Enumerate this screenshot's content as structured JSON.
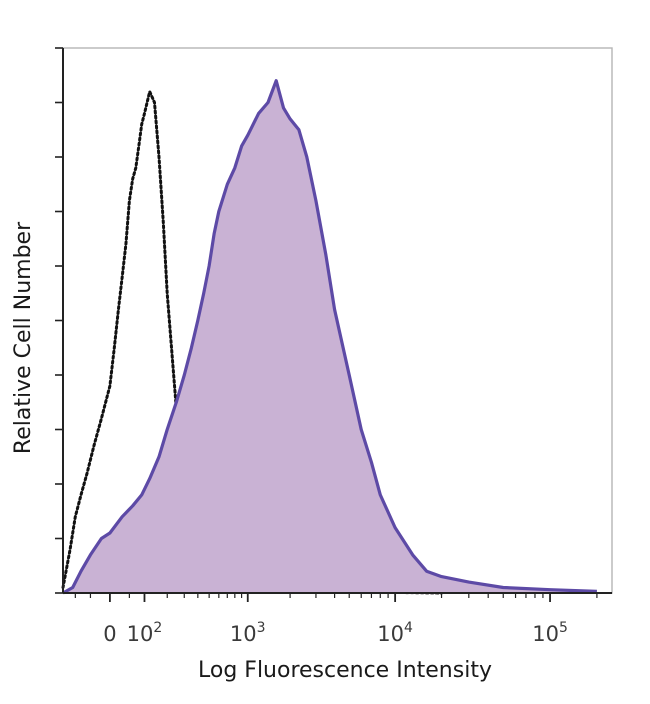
{
  "chart_data": {
    "type": "area",
    "title": "",
    "xlabel": "Log Fluorescence Intensity",
    "ylabel": "Relative Cell Number",
    "x_scale": "biexponential",
    "x_ticks": [
      {
        "value": 0,
        "base": "0",
        "exp": ""
      },
      {
        "value": 100,
        "base": "10",
        "exp": "2"
      },
      {
        "value": 1000,
        "base": "10",
        "exp": "3"
      },
      {
        "value": 10000,
        "base": "10",
        "exp": "4"
      },
      {
        "value": 100000,
        "base": "10",
        "exp": "5"
      }
    ],
    "xlim": [
      -150,
      250000
    ],
    "ylim": [
      0,
      100
    ],
    "grid": false,
    "legend": "none",
    "series": [
      {
        "style": "dotted-outline",
        "color": "#111111",
        "points": [
          [
            -150,
            1
          ],
          [
            -120,
            8
          ],
          [
            -100,
            14
          ],
          [
            -80,
            18
          ],
          [
            -60,
            22
          ],
          [
            -40,
            27
          ],
          [
            -20,
            32
          ],
          [
            0,
            38
          ],
          [
            10,
            45
          ],
          [
            20,
            52
          ],
          [
            30,
            58
          ],
          [
            40,
            64
          ],
          [
            50,
            72
          ],
          [
            60,
            76
          ],
          [
            70,
            78
          ],
          [
            80,
            82
          ],
          [
            90,
            86
          ],
          [
            100,
            88
          ],
          [
            110,
            90
          ],
          [
            120,
            92
          ],
          [
            140,
            90
          ],
          [
            160,
            80
          ],
          [
            180,
            68
          ],
          [
            200,
            55
          ],
          [
            230,
            42
          ],
          [
            260,
            30
          ],
          [
            300,
            20
          ],
          [
            350,
            12
          ],
          [
            400,
            7
          ],
          [
            500,
            3
          ],
          [
            700,
            1.5
          ],
          [
            1000,
            1
          ],
          [
            2000,
            0.5
          ],
          [
            5000,
            0.2
          ],
          [
            20000,
            0
          ]
        ]
      },
      {
        "style": "filled",
        "color": "#5d4aa6",
        "fill": "#c9b2d4",
        "points": [
          [
            -150,
            0
          ],
          [
            -110,
            1
          ],
          [
            -80,
            4
          ],
          [
            -50,
            7
          ],
          [
            -20,
            10
          ],
          [
            0,
            11
          ],
          [
            30,
            14
          ],
          [
            60,
            16
          ],
          [
            90,
            18
          ],
          [
            120,
            21
          ],
          [
            160,
            25
          ],
          [
            200,
            30
          ],
          [
            250,
            35
          ],
          [
            300,
            40
          ],
          [
            350,
            45
          ],
          [
            400,
            50
          ],
          [
            450,
            55
          ],
          [
            500,
            60
          ],
          [
            550,
            66
          ],
          [
            600,
            70
          ],
          [
            700,
            75
          ],
          [
            800,
            78
          ],
          [
            900,
            82
          ],
          [
            1000,
            84
          ],
          [
            1200,
            88
          ],
          [
            1400,
            90
          ],
          [
            1600,
            94
          ],
          [
            1800,
            89
          ],
          [
            2000,
            87
          ],
          [
            2300,
            85
          ],
          [
            2600,
            80
          ],
          [
            3000,
            72
          ],
          [
            3500,
            62
          ],
          [
            4000,
            52
          ],
          [
            5000,
            40
          ],
          [
            6000,
            30
          ],
          [
            7000,
            24
          ],
          [
            8000,
            18
          ],
          [
            10000,
            12
          ],
          [
            13000,
            7
          ],
          [
            16000,
            4
          ],
          [
            20000,
            3
          ],
          [
            30000,
            2
          ],
          [
            50000,
            1
          ],
          [
            100000,
            0.6
          ],
          [
            200000,
            0.3
          ]
        ]
      }
    ]
  }
}
